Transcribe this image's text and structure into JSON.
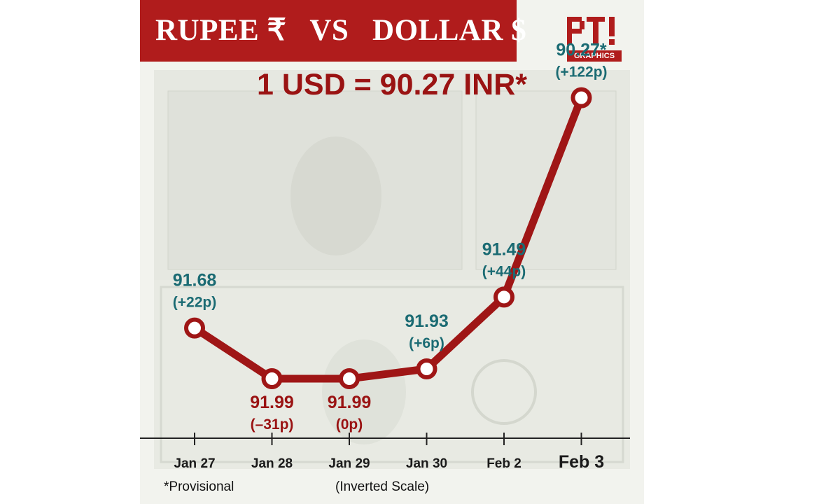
{
  "header": {
    "title": "RUPEE ₹   VS   DOLLAR $",
    "headline": "1 USD = 90.27 INR*"
  },
  "logo": {
    "mark": "PTI",
    "sub": "GRAPHICS"
  },
  "notes": {
    "footnote": "*Provisional",
    "scale_note": "(Inverted Scale)"
  },
  "colors": {
    "brand_red": "#b01c1c",
    "line": "#9f1616",
    "label_teal": "#1b6b73",
    "label_red": "#9a1313"
  },
  "chart_data": {
    "type": "line",
    "title": "1 USD = 90.27 INR*",
    "xlabel": "",
    "ylabel": "",
    "inverted_y": true,
    "ylim": [
      92.2,
      90.1
    ],
    "categories": [
      "Jan 27",
      "Jan 28",
      "Jan 29",
      "Jan 30",
      "Feb 2",
      "Feb 3"
    ],
    "values": [
      91.68,
      91.99,
      91.99,
      91.93,
      91.49,
      90.27
    ],
    "value_labels": [
      "91.68",
      "91.99",
      "91.99",
      "91.93",
      "91.49",
      "90.27*"
    ],
    "change_labels": [
      "(+22p)",
      "(–31p)",
      "(0p)",
      "(+6p)",
      "(+44p)",
      "(+122p)"
    ],
    "label_positions": [
      "above",
      "below",
      "below",
      "above",
      "above",
      "above"
    ],
    "highlight_last_category": true
  }
}
